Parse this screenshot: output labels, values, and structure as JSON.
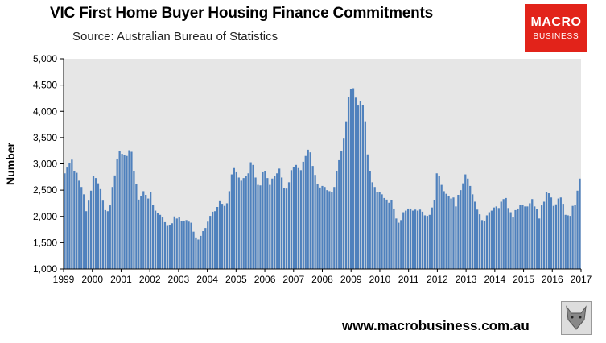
{
  "title": "VIC First Home Buyer Housing Finance Commitments",
  "subtitle": "Source: Australian Bureau of Statistics",
  "logo": {
    "line1": "MACRO",
    "line2": "BUSINESS"
  },
  "footer": "www.macrobusiness.com.au",
  "colors": {
    "bar": "#4f81bd",
    "plot_bg": "#e6e6e6",
    "logo_bg": "#e2231a"
  },
  "chart_data": {
    "type": "bar",
    "title": "VIC First Home Buyer Housing Finance Commitments",
    "ylabel": "Number",
    "ylim": [
      1000,
      5000
    ],
    "yticks": [
      1000,
      1500,
      2000,
      2500,
      3000,
      3500,
      4000,
      4500,
      5000
    ],
    "ytick_labels": [
      "1,000",
      "1,500",
      "2,000",
      "2,500",
      "3,000",
      "3,500",
      "4,000",
      "4,500",
      "5,000"
    ],
    "xtick_labels": [
      "1999",
      "2000",
      "2001",
      "2002",
      "2003",
      "2004",
      "2005",
      "2006",
      "2007",
      "2008",
      "2009",
      "2010",
      "2011",
      "2012",
      "2013",
      "2014",
      "2015",
      "2016",
      "2017"
    ],
    "x_start": "1999-01",
    "frequency": "monthly",
    "grid": false,
    "values": [
      2820,
      2930,
      3020,
      3080,
      2870,
      2830,
      2680,
      2560,
      2420,
      2100,
      2300,
      2490,
      2770,
      2730,
      2630,
      2520,
      2300,
      2120,
      2100,
      2210,
      2560,
      2780,
      3100,
      3250,
      3190,
      3170,
      3150,
      3260,
      3230,
      2870,
      2620,
      2320,
      2380,
      2480,
      2410,
      2340,
      2460,
      2220,
      2110,
      2060,
      2030,
      1980,
      1890,
      1820,
      1830,
      1870,
      2000,
      1960,
      1980,
      1910,
      1920,
      1930,
      1900,
      1880,
      1710,
      1600,
      1560,
      1630,
      1720,
      1780,
      1900,
      2010,
      2090,
      2100,
      2180,
      2290,
      2240,
      2200,
      2250,
      2480,
      2800,
      2920,
      2840,
      2740,
      2680,
      2730,
      2770,
      2820,
      3030,
      2980,
      2740,
      2600,
      2590,
      2840,
      2860,
      2730,
      2600,
      2720,
      2770,
      2820,
      2910,
      2740,
      2540,
      2530,
      2650,
      2880,
      2940,
      2980,
      2920,
      2880,
      3040,
      3150,
      3270,
      3220,
      2960,
      2790,
      2620,
      2550,
      2580,
      2560,
      2500,
      2480,
      2470,
      2560,
      2870,
      3070,
      3250,
      3480,
      3810,
      4270,
      4420,
      4440,
      4260,
      4110,
      4190,
      4120,
      3810,
      3180,
      2860,
      2650,
      2560,
      2460,
      2460,
      2420,
      2350,
      2320,
      2260,
      2310,
      2150,
      1960,
      1880,
      1930,
      2080,
      2110,
      2150,
      2150,
      2110,
      2130,
      2110,
      2130,
      2090,
      2020,
      2010,
      2030,
      2170,
      2310,
      2820,
      2770,
      2600,
      2480,
      2430,
      2380,
      2340,
      2360,
      2190,
      2410,
      2500,
      2630,
      2800,
      2720,
      2580,
      2420,
      2280,
      2130,
      2040,
      1930,
      1920,
      2020,
      2080,
      2110,
      2170,
      2190,
      2160,
      2280,
      2330,
      2350,
      2160,
      2080,
      1980,
      2120,
      2150,
      2220,
      2220,
      2190,
      2190,
      2250,
      2330,
      2190,
      2140,
      1960,
      2210,
      2280,
      2470,
      2440,
      2360,
      2200,
      2230,
      2340,
      2360,
      2240,
      2030,
      2020,
      2010,
      2200,
      2220,
      2490,
      2720
    ]
  }
}
